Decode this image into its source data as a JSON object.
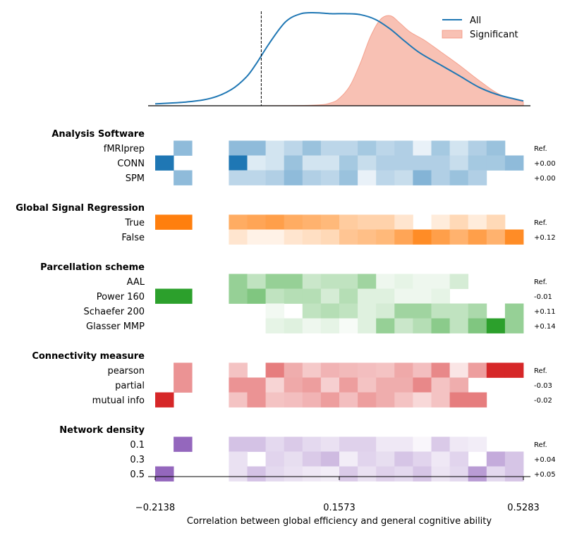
{
  "chart_data": [
    {
      "type": "area",
      "panel": "density",
      "x_domain": [
        -0.2138,
        0.5283
      ],
      "series": [
        {
          "name": "All",
          "color": "#1f77b4",
          "points": [
            [
              -0.2138,
              0.02
            ],
            [
              -0.15,
              0.04
            ],
            [
              -0.1,
              0.08
            ],
            [
              -0.06,
              0.17
            ],
            [
              -0.03,
              0.3
            ],
            [
              -0.01,
              0.44
            ],
            [
              0.02,
              0.68
            ],
            [
              0.05,
              0.88
            ],
            [
              0.08,
              0.96
            ],
            [
              0.11,
              0.97
            ],
            [
              0.14,
              0.96
            ],
            [
              0.17,
              0.96
            ],
            [
              0.2,
              0.95
            ],
            [
              0.23,
              0.9
            ],
            [
              0.26,
              0.8
            ],
            [
              0.29,
              0.67
            ],
            [
              0.32,
              0.55
            ],
            [
              0.36,
              0.43
            ],
            [
              0.4,
              0.31
            ],
            [
              0.44,
              0.19
            ],
            [
              0.48,
              0.11
            ],
            [
              0.5283,
              0.05
            ]
          ]
        },
        {
          "name": "Significant",
          "color": "#f07d62",
          "fill_opacity": 0.48,
          "points": [
            [
              -0.2138,
              0
            ],
            [
              -0.05,
              0
            ],
            [
              0.1,
              0.005
            ],
            [
              0.14,
              0.03
            ],
            [
              0.16,
              0.09
            ],
            [
              0.18,
              0.22
            ],
            [
              0.2,
              0.45
            ],
            [
              0.22,
              0.72
            ],
            [
              0.24,
              0.9
            ],
            [
              0.26,
              0.94
            ],
            [
              0.28,
              0.86
            ],
            [
              0.3,
              0.77
            ],
            [
              0.33,
              0.68
            ],
            [
              0.36,
              0.57
            ],
            [
              0.4,
              0.42
            ],
            [
              0.44,
              0.26
            ],
            [
              0.48,
              0.12
            ],
            [
              0.5283,
              0.04
            ]
          ]
        }
      ],
      "reference_line_x": 0,
      "legend": {
        "position": "top-right",
        "entries": [
          "All",
          "Significant"
        ]
      }
    },
    {
      "type": "heatmap",
      "panel": "specification",
      "xlabel": "Correlation between global efficiency and general cognitive ability",
      "x_ticks": [
        "−0.2138",
        "0.1573",
        "0.5283"
      ],
      "n_columns": 20,
      "groups": [
        {
          "title": "Analysis Software",
          "color": "#1f77b4",
          "rows": [
            {
              "label": "fMRIprep",
              "delta": "Ref.",
              "cells": [
                0,
                0.5,
                0,
                0,
                0.5,
                0.5,
                0.2,
                0.3,
                0.45,
                0.3,
                0.3,
                0.4,
                0.3,
                0.35,
                0.1,
                0.4,
                0.2,
                0.35,
                0.45,
                0
              ]
            },
            {
              "label": "CONN",
              "delta": "+0.00",
              "cells": [
                1,
                0,
                0,
                0,
                1,
                0.15,
                0.2,
                0.45,
                0.2,
                0.2,
                0.4,
                0.25,
                0.35,
                0.35,
                0.35,
                0.35,
                0.25,
                0.4,
                0.4,
                0.5
              ]
            },
            {
              "label": "SPM",
              "delta": "+0.00",
              "cells": [
                0,
                0.5,
                0,
                0,
                0.3,
                0.3,
                0.35,
                0.5,
                0.35,
                0.3,
                0.45,
                0.1,
                0.3,
                0.25,
                0.55,
                0.35,
                0.45,
                0.35,
                0,
                0
              ]
            }
          ]
        },
        {
          "title": "Global Signal Regression",
          "color": "#ff7f0e",
          "rows": [
            {
              "label": "True",
              "delta": "Ref.",
              "cells": [
                1,
                1,
                0,
                0,
                0.65,
                0.7,
                0.75,
                0.65,
                0.6,
                0.55,
                0.4,
                0.35,
                0.35,
                0.2,
                0,
                0.15,
                0.3,
                0.15,
                0.3,
                0
              ]
            },
            {
              "label": "False",
              "delta": "+0.12",
              "cells": [
                0,
                0,
                0,
                0,
                0.2,
                0.1,
                0.1,
                0.2,
                0.25,
                0.3,
                0.45,
                0.5,
                0.55,
                0.7,
                0.9,
                0.75,
                0.6,
                0.75,
                0.6,
                0.9
              ]
            }
          ]
        },
        {
          "title": "Parcellation scheme",
          "color": "#2ca02c",
          "rows": [
            {
              "label": "AAL",
              "delta": "Ref.",
              "cells": [
                0,
                0,
                0,
                0,
                0.5,
                0.3,
                0.5,
                0.5,
                0.25,
                0.3,
                0.3,
                0.45,
                0.08,
                0.12,
                0.08,
                0.08,
                0.2,
                0,
                0,
                0
              ]
            },
            {
              "label": "Power 160",
              "delta": "-0.01",
              "cells": [
                1,
                1,
                0,
                0,
                0.5,
                0.6,
                0.3,
                0.35,
                0.35,
                0.2,
                0.35,
                0.15,
                0.15,
                0.08,
                0.08,
                0.12,
                0,
                0,
                0,
                0
              ]
            },
            {
              "label": "Schaefer 200",
              "delta": "+0.11",
              "cells": [
                0,
                0,
                0,
                0,
                0,
                0,
                0.06,
                0,
                0.3,
                0.35,
                0.3,
                0.15,
                0.2,
                0.45,
                0.45,
                0.3,
                0.3,
                0.4,
                0,
                0.5
              ]
            },
            {
              "label": "Glasser MMP",
              "delta": "+0.14",
              "cells": [
                0,
                0,
                0,
                0,
                0,
                0,
                0.12,
                0.15,
                0.08,
                0.12,
                0.04,
                0.15,
                0.5,
                0.25,
                0.35,
                0.55,
                0.3,
                0.6,
                1,
                0.5
              ]
            }
          ]
        },
        {
          "title": "Connectivity measure",
          "color": "#d62728",
          "rows": [
            {
              "label": "pearson",
              "delta": "Ref.",
              "cells": [
                0,
                0.5,
                0,
                0,
                0.28,
                0,
                0.6,
                0.38,
                0.25,
                0.35,
                0.32,
                0.3,
                0.28,
                0.4,
                0.3,
                0.55,
                0.12,
                0.45,
                1,
                1
              ]
            },
            {
              "label": "partial",
              "delta": "-0.03",
              "cells": [
                0,
                0.5,
                0,
                0,
                0.5,
                0.5,
                0.2,
                0.4,
                0.45,
                0.22,
                0.45,
                0.28,
                0.38,
                0.38,
                0.55,
                0.28,
                0.38,
                0,
                0,
                0
              ]
            },
            {
              "label": "mutual info",
              "delta": "-0.02",
              "cells": [
                1,
                0,
                0,
                0,
                0.28,
                0.5,
                0.28,
                0.3,
                0.35,
                0.45,
                0.3,
                0.45,
                0.38,
                0.28,
                0.18,
                0.28,
                0.6,
                0.6,
                0,
                0
              ]
            }
          ]
        },
        {
          "title": "Network density",
          "color": "#9467bd",
          "rows": [
            {
              "label": "0.1",
              "delta": "Ref.",
              "cells": [
                0,
                1,
                0,
                0,
                0.4,
                0.4,
                0.25,
                0.35,
                0.25,
                0.2,
                0.3,
                0.3,
                0.15,
                0.15,
                0.06,
                0.35,
                0.15,
                0.12,
                0,
                0
              ]
            },
            {
              "label": "0.3",
              "delta": "+0.04",
              "cells": [
                0,
                0,
                0,
                0,
                0.2,
                0,
                0.28,
                0.22,
                0.35,
                0.45,
                0.12,
                0.28,
                0.22,
                0.38,
                0.28,
                0.15,
                0.28,
                0,
                0.55,
                0.38
              ]
            },
            {
              "label": "0.5",
              "delta": "+0.05",
              "cells": [
                1,
                0,
                0,
                0,
                0.2,
                0.4,
                0.25,
                0.2,
                0.15,
                0.12,
                0.35,
                0.2,
                0.3,
                0.25,
                0.38,
                0.18,
                0.25,
                0.65,
                0.25,
                0.38
              ]
            }
          ]
        }
      ]
    }
  ]
}
